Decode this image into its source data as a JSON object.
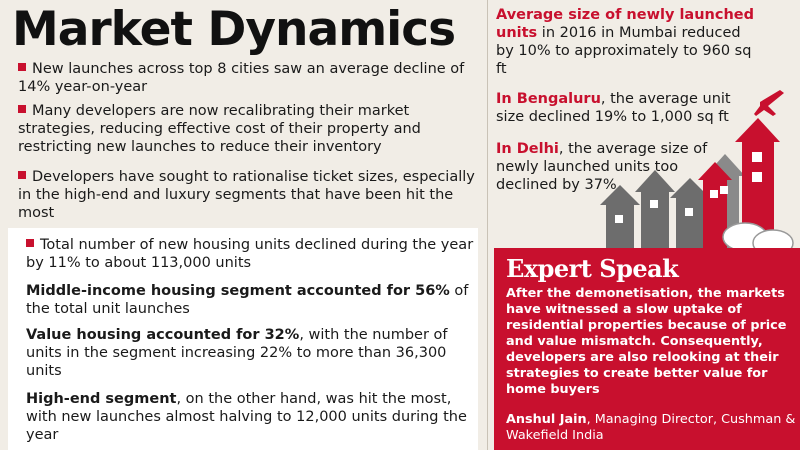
{
  "title": "Market Dynamics",
  "bullets": [
    {
      "text": "New launches across top 8 cities saw an average decline of 14% year-on-year"
    },
    {
      "text": "Many developers are now recalibrating their market strategies, reducing effective cost of their property and restricting new launches to reduce their inventory"
    },
    {
      "text": "Developers have sought to rationalise ticket sizes, especially in the high-end and luxury segments that have been hit the most"
    }
  ],
  "stats": {
    "total": "Total number of new housing units declined during the year by 11% to about 113,000 units",
    "middle_bold": "Middle-income housing segment accounted for 56%",
    "middle_rest": " of the total unit launches",
    "value_bold": "Value housing accounted for 32%",
    "value_rest": ", with the number of units in the segment increasing 22% to more than 36,300 units",
    "high_bold": "High-end segment",
    "high_rest": ", on the other hand, was hit the most, with new launches almost halving to 12,000 units during the year"
  },
  "cities": {
    "mumbai_red": "Average size of newly launched units",
    "mumbai_rest": " in 2016 in Mumbai reduced by 10% to approximately to 960 sq ft",
    "bengaluru_red": "In Bengaluru",
    "bengaluru_rest": ", the average unit size declined 19% to 1,000 sq ft",
    "delhi_red": "In Delhi",
    "delhi_rest": ", the average size of newly launched units too declined by 37%"
  },
  "expert": {
    "title": "Expert Speak",
    "quote": "After the demonetisation, the markets have witnessed a slow uptake of residential properties because of price and value mismatch. Consequently, developers are also relooking at their strategies to create better value for home buyers",
    "author_name": "Anshul Jain",
    "author_role": ", Managing Director, Cushman & Wakefield India"
  },
  "colors": {
    "accent": "#c8102e",
    "background": "#f1ede6",
    "house_grey": "#6d6d6d"
  },
  "icons": [
    "airplane-icon",
    "houses-illustration",
    "speech-bubbles-icon",
    "red-square-bullet-icon"
  ]
}
